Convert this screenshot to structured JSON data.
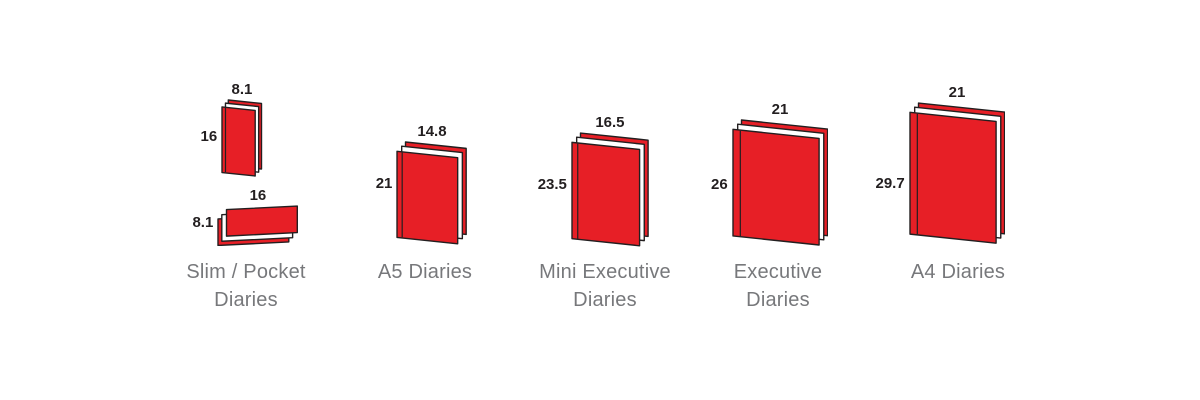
{
  "figure": {
    "colors": {
      "cover_red": "#e71f26",
      "pages_white": "#ffffff",
      "outline": "#231f20",
      "dimension_text": "#231f20",
      "label_text": "#77787b",
      "background": "#ffffff"
    },
    "groups": [
      {
        "label_lines": [
          "Slim / Pocket",
          "Diaries"
        ],
        "books": [
          {
            "orientation": "portrait",
            "width_cm": "8.1",
            "height_cm": "16"
          },
          {
            "orientation": "landscape",
            "width_cm": "16",
            "height_cm": "8.1"
          }
        ]
      },
      {
        "label_lines": [
          "A5 Diaries"
        ],
        "books": [
          {
            "orientation": "portrait",
            "width_cm": "14.8",
            "height_cm": "21"
          }
        ]
      },
      {
        "label_lines": [
          "Mini Executive",
          "Diaries"
        ],
        "books": [
          {
            "orientation": "portrait",
            "width_cm": "16.5",
            "height_cm": "23.5"
          }
        ]
      },
      {
        "label_lines": [
          "Executive",
          "Diaries"
        ],
        "books": [
          {
            "orientation": "portrait",
            "width_cm": "21",
            "height_cm": "26"
          }
        ]
      },
      {
        "label_lines": [
          "A4 Diaries"
        ],
        "books": [
          {
            "orientation": "portrait",
            "width_cm": "21",
            "height_cm": "29.7"
          }
        ]
      }
    ]
  }
}
